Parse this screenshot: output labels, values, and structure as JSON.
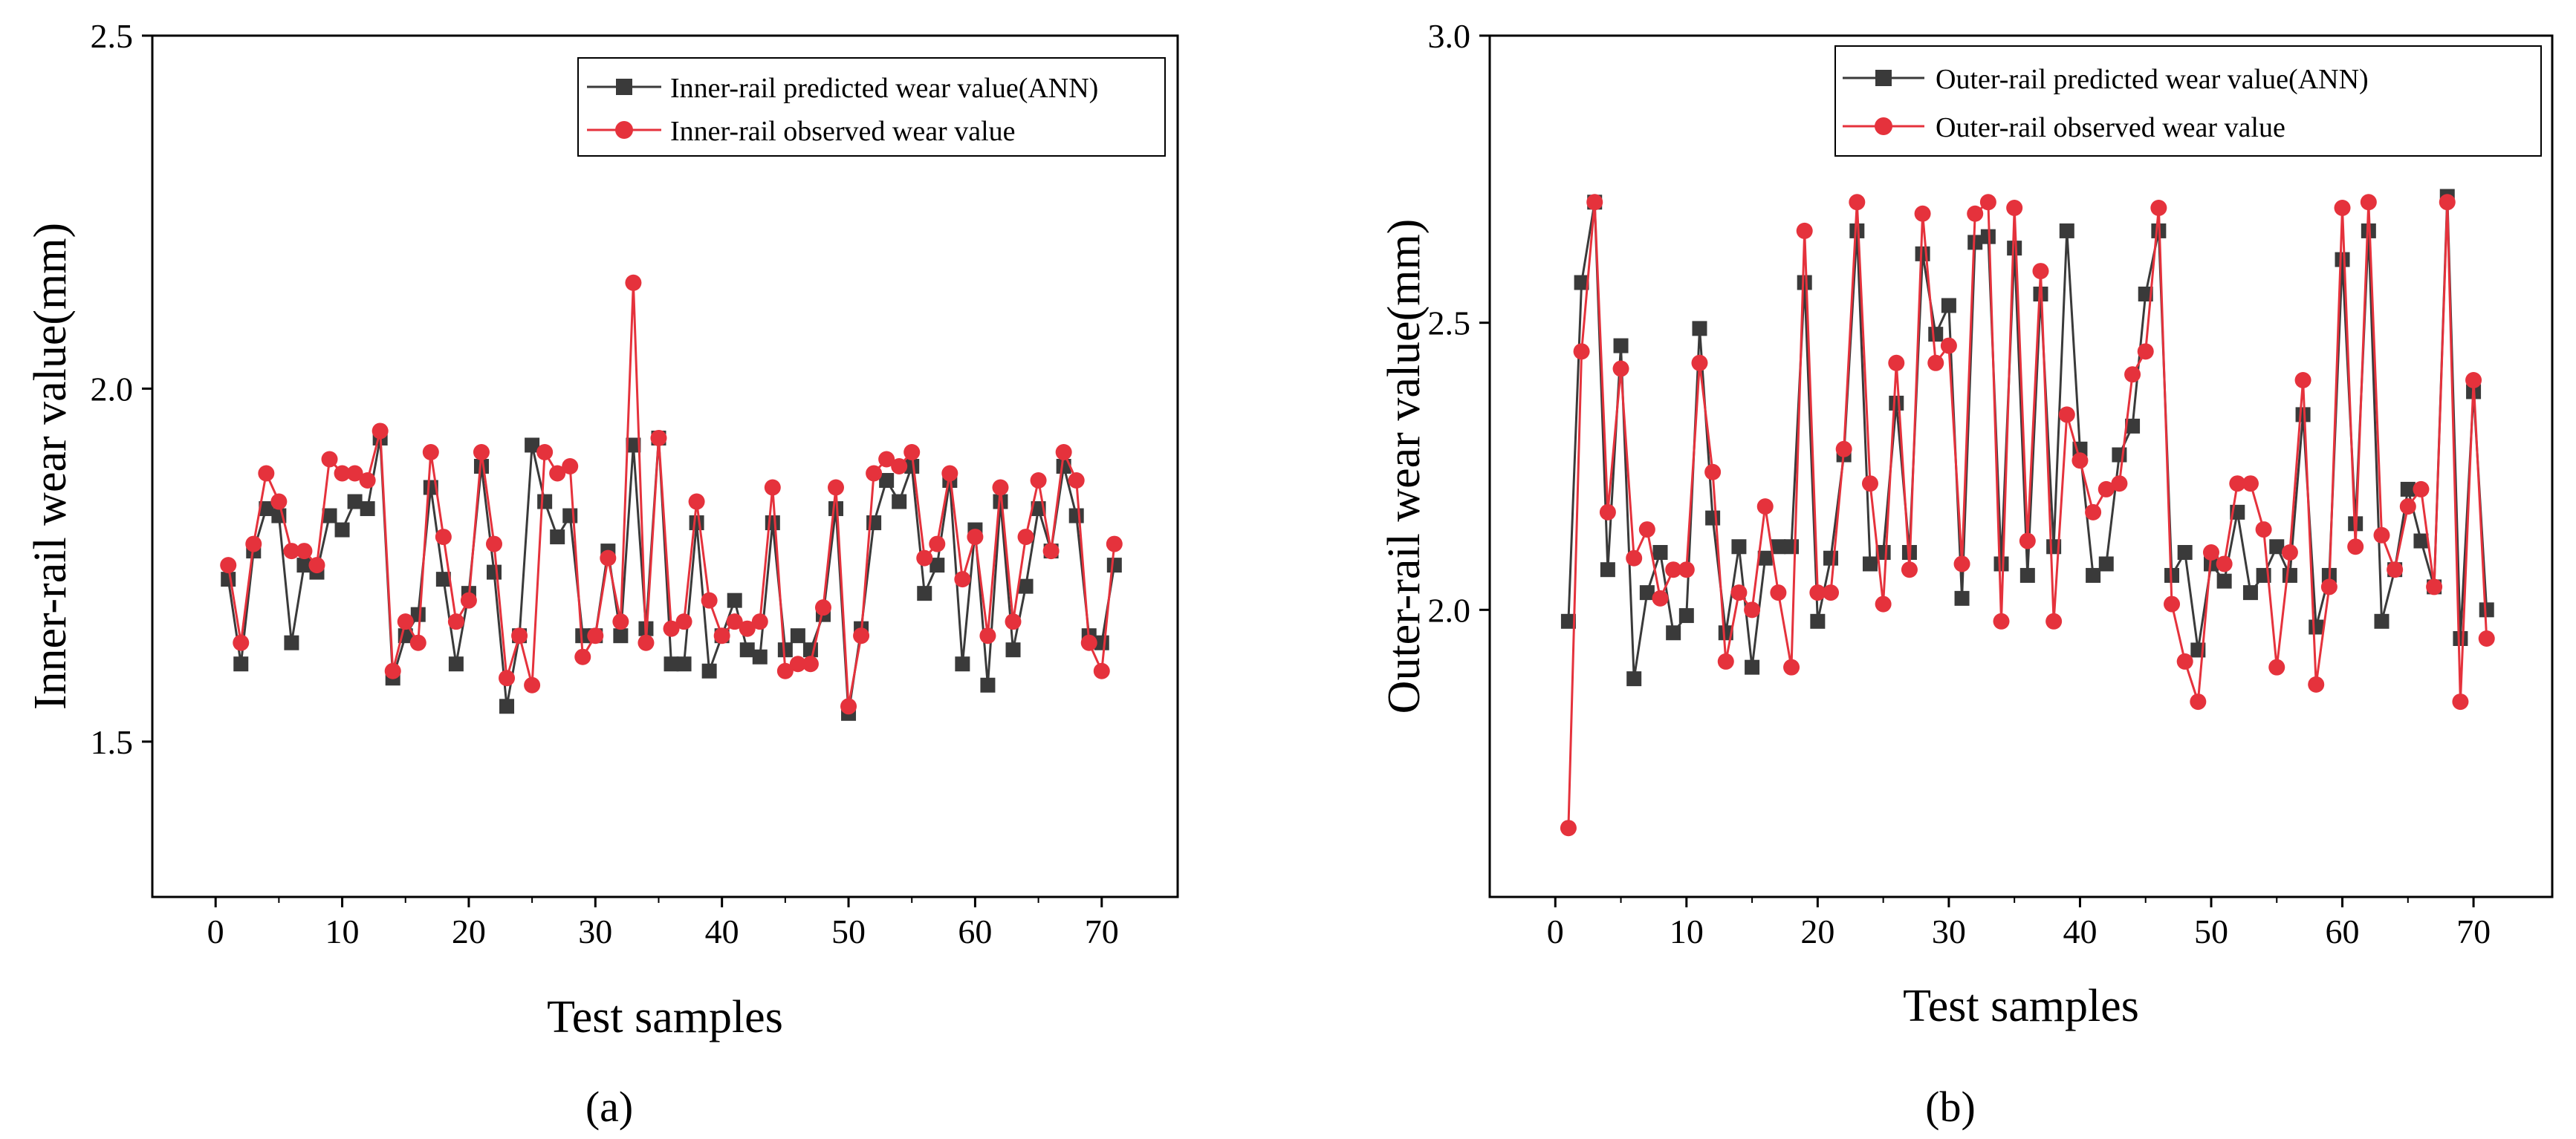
{
  "chart_data": [
    {
      "type": "line",
      "panel_label": "(a)",
      "xlabel": "Test samples",
      "ylabel": "Inner-rail  wear value(mm)",
      "xlim": [
        -5,
        76
      ],
      "ylim": [
        1.28,
        2.5
      ],
      "xticks": [
        0,
        10,
        20,
        30,
        40,
        50,
        60,
        70
      ],
      "xtick_labels": [
        "0",
        "10",
        "20",
        "30",
        "40",
        "50",
        "60",
        "70"
      ],
      "yticks": [
        1.5,
        2.0,
        2.5
      ],
      "ytick_labels": [
        "1.5",
        "2.0",
        "2.5"
      ],
      "legend_position": "top-right",
      "grid": false,
      "x": [
        1,
        2,
        3,
        4,
        5,
        6,
        7,
        8,
        9,
        10,
        11,
        12,
        13,
        14,
        15,
        16,
        17,
        18,
        19,
        20,
        21,
        22,
        23,
        24,
        25,
        26,
        27,
        28,
        29,
        30,
        31,
        32,
        33,
        34,
        35,
        36,
        37,
        38,
        39,
        40,
        41,
        42,
        43,
        44,
        45,
        46,
        47,
        48,
        49,
        50,
        51,
        52,
        53,
        54,
        55,
        56,
        57,
        58,
        59,
        60,
        61,
        62,
        63,
        64,
        65,
        66,
        67,
        68,
        69,
        70,
        71
      ],
      "series": [
        {
          "name": "Inner-rail  predicted wear value(ANN)",
          "color": "#3a3a3a",
          "marker": "square",
          "values": [
            1.73,
            1.61,
            1.77,
            1.83,
            1.82,
            1.64,
            1.75,
            1.74,
            1.82,
            1.8,
            1.84,
            1.83,
            1.93,
            1.59,
            1.65,
            1.68,
            1.86,
            1.73,
            1.61,
            1.71,
            1.89,
            1.74,
            1.55,
            1.65,
            1.92,
            1.84,
            1.79,
            1.82,
            1.65,
            1.65,
            1.77,
            1.65,
            1.92,
            1.66,
            1.93,
            1.61,
            1.61,
            1.81,
            1.6,
            1.65,
            1.7,
            1.63,
            1.62,
            1.81,
            1.63,
            1.65,
            1.63,
            1.68,
            1.83,
            1.54,
            1.66,
            1.81,
            1.87,
            1.84,
            1.89,
            1.71,
            1.75,
            1.87,
            1.61,
            1.8,
            1.58,
            1.84,
            1.63,
            1.72,
            1.83,
            1.77,
            1.89,
            1.82,
            1.65,
            1.64,
            1.75
          ]
        },
        {
          "name": "Inner-rail observed wear value",
          "color": "#e5323c",
          "marker": "circle",
          "values": [
            1.75,
            1.64,
            1.78,
            1.88,
            1.84,
            1.77,
            1.77,
            1.75,
            1.9,
            1.88,
            1.88,
            1.87,
            1.94,
            1.6,
            1.67,
            1.64,
            1.91,
            1.79,
            1.67,
            1.7,
            1.91,
            1.78,
            1.59,
            1.65,
            1.58,
            1.91,
            1.88,
            1.89,
            1.62,
            1.65,
            1.76,
            1.67,
            2.15,
            1.64,
            1.93,
            1.66,
            1.67,
            1.84,
            1.7,
            1.65,
            1.67,
            1.66,
            1.67,
            1.86,
            1.6,
            1.61,
            1.61,
            1.69,
            1.86,
            1.55,
            1.65,
            1.88,
            1.9,
            1.89,
            1.91,
            1.76,
            1.78,
            1.88,
            1.73,
            1.79,
            1.65,
            1.86,
            1.67,
            1.79,
            1.87,
            1.77,
            1.91,
            1.87,
            1.64,
            1.6,
            1.78
          ]
        }
      ]
    },
    {
      "type": "line",
      "panel_label": "(b)",
      "xlabel": "Test samples",
      "ylabel": "Outer-rail  wear value(mm)",
      "xlim": [
        -5,
        76
      ],
      "ylim": [
        1.5,
        3.0
      ],
      "xticks": [
        0,
        10,
        20,
        30,
        40,
        50,
        60,
        70
      ],
      "xtick_labels": [
        "0",
        "10",
        "20",
        "30",
        "40",
        "50",
        "60",
        "70"
      ],
      "yticks": [
        2.0,
        2.5,
        3.0
      ],
      "ytick_labels": [
        "2.0",
        "2.5",
        "3.0"
      ],
      "legend_position": "top-right",
      "grid": false,
      "x": [
        1,
        2,
        3,
        4,
        5,
        6,
        7,
        8,
        9,
        10,
        11,
        12,
        13,
        14,
        15,
        16,
        17,
        18,
        19,
        20,
        21,
        22,
        23,
        24,
        25,
        26,
        27,
        28,
        29,
        30,
        31,
        32,
        33,
        34,
        35,
        36,
        37,
        38,
        39,
        40,
        41,
        42,
        43,
        44,
        45,
        46,
        47,
        48,
        49,
        50,
        51,
        52,
        53,
        54,
        55,
        56,
        57,
        58,
        59,
        60,
        61,
        62,
        63,
        64,
        65,
        66,
        67,
        68,
        69,
        70,
        71
      ],
      "series": [
        {
          "name": "Outer-rail  predicted wear value(ANN)",
          "color": "#3a3a3a",
          "marker": "square",
          "values": [
            1.98,
            2.57,
            2.71,
            2.07,
            2.46,
            1.88,
            2.03,
            2.1,
            1.96,
            1.99,
            2.49,
            2.16,
            1.96,
            2.11,
            1.9,
            2.09,
            2.11,
            2.11,
            2.57,
            1.98,
            2.09,
            2.27,
            2.66,
            2.08,
            2.1,
            2.36,
            2.1,
            2.62,
            2.48,
            2.53,
            2.02,
            2.64,
            2.65,
            2.08,
            2.63,
            2.06,
            2.55,
            2.11,
            2.66,
            2.28,
            2.06,
            2.08,
            2.27,
            2.32,
            2.55,
            2.66,
            2.06,
            2.1,
            1.93,
            2.08,
            2.05,
            2.17,
            2.03,
            2.06,
            2.11,
            2.06,
            2.34,
            1.97,
            2.06,
            2.61,
            2.15,
            2.66,
            1.98,
            2.07,
            2.21,
            2.12,
            2.04,
            2.72,
            1.95,
            2.38,
            2.0
          ]
        },
        {
          "name": "Outer-rail observed wear value",
          "color": "#e5323c",
          "marker": "circle",
          "values": [
            1.62,
            2.45,
            2.71,
            2.17,
            2.42,
            2.09,
            2.14,
            2.02,
            2.07,
            2.07,
            2.43,
            2.24,
            1.91,
            2.03,
            2.0,
            2.18,
            2.03,
            1.9,
            2.66,
            2.03,
            2.03,
            2.28,
            2.71,
            2.22,
            2.01,
            2.43,
            2.07,
            2.69,
            2.43,
            2.46,
            2.08,
            2.69,
            2.71,
            1.98,
            2.7,
            2.12,
            2.59,
            1.98,
            2.34,
            2.26,
            2.17,
            2.21,
            2.22,
            2.41,
            2.45,
            2.7,
            2.01,
            1.91,
            1.84,
            2.1,
            2.08,
            2.22,
            2.22,
            2.14,
            1.9,
            2.1,
            2.4,
            1.87,
            2.04,
            2.7,
            2.11,
            2.71,
            2.13,
            2.07,
            2.18,
            2.21,
            2.04,
            2.71,
            1.84,
            2.4,
            1.95
          ]
        }
      ]
    }
  ]
}
